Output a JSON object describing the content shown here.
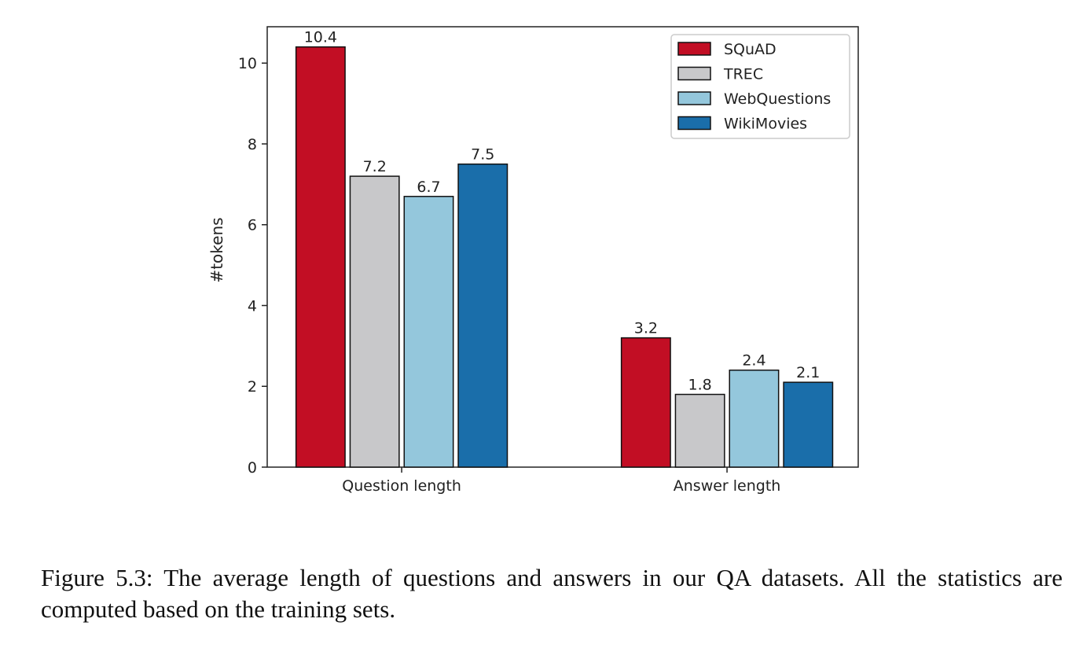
{
  "chart_data": {
    "type": "bar",
    "categories": [
      "Question length",
      "Answer length"
    ],
    "series": [
      {
        "name": "SQuAD",
        "values": [
          10.4,
          3.2
        ],
        "color": "#c20e24"
      },
      {
        "name": "TREC",
        "values": [
          7.2,
          1.8
        ],
        "color": "#c8c8ca"
      },
      {
        "name": "WebQuestions",
        "values": [
          6.7,
          2.4
        ],
        "color": "#94c7dc"
      },
      {
        "name": "WikiMovies",
        "values": [
          7.5,
          2.1
        ],
        "color": "#1a6eaa"
      }
    ],
    "data_labels": [
      [
        "10.4",
        "7.2",
        "6.7",
        "7.5"
      ],
      [
        "3.2",
        "1.8",
        "2.4",
        "2.1"
      ]
    ],
    "title": "",
    "xlabel": "",
    "ylabel": "#tokens",
    "ylim": [
      0,
      10.9
    ],
    "yticks": [
      0,
      2,
      4,
      6,
      8,
      10
    ],
    "grid": false,
    "legend": "top-right"
  },
  "caption": "Figure 5.3: The average length of questions and answers in our QA datasets. All the statistics are computed based on the training sets."
}
